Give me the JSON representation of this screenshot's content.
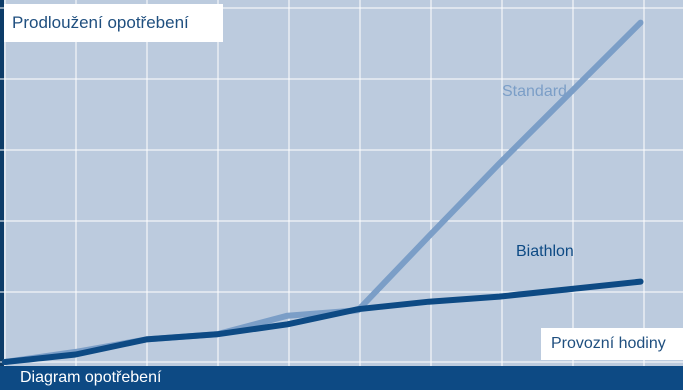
{
  "chart_data": {
    "type": "line",
    "ylabel": "Prodloužení opotřebení",
    "xlabel": "Provozní hodiny",
    "x": [
      0,
      1,
      2,
      3,
      4,
      5,
      6,
      7,
      8,
      9
    ],
    "series": [
      {
        "name": "Standard",
        "values": [
          0.0,
          0.2,
          0.45,
          0.55,
          0.92,
          1.03,
          2.5,
          3.95,
          5.35,
          6.75
        ],
        "color": "#7b9ec7"
      },
      {
        "name": "Biathlon",
        "values": [
          0.0,
          0.15,
          0.45,
          0.55,
          0.75,
          1.05,
          1.2,
          1.3,
          1.45,
          1.6
        ],
        "color": "#0d4a84"
      }
    ],
    "xlim": [
      0,
      9.6
    ],
    "ylim": [
      0,
      7.2
    ],
    "grid": true
  },
  "footer": {
    "label": "Diagram opotřebení"
  },
  "colors": {
    "plot_bg": "#bccbde",
    "grid": "#ffffff",
    "frame_bg": "#0d3c68"
  }
}
